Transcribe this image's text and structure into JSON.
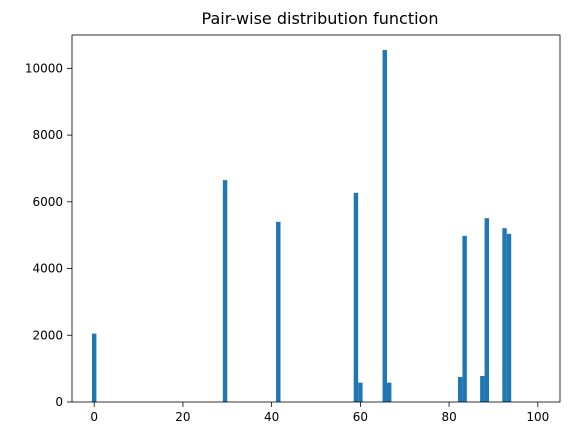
{
  "chart_data": {
    "type": "bar",
    "title": "Pair-wise distribution function",
    "xlabel": "",
    "ylabel": "",
    "xlim": [
      -5,
      105
    ],
    "ylim": [
      0,
      11000
    ],
    "bin_width": 1,
    "bar_color": "#1f77b4",
    "grid": false,
    "x_ticks": [
      0,
      20,
      40,
      60,
      80,
      100
    ],
    "y_ticks": [
      0,
      2000,
      4000,
      6000,
      8000,
      10000
    ],
    "x_tick_labels": [
      "0",
      "20",
      "40",
      "60",
      "80",
      "100"
    ],
    "y_tick_labels": [
      "0",
      "2000",
      "4000",
      "6000",
      "8000",
      "10000"
    ],
    "bars": [
      {
        "x": 0,
        "value": 2050
      },
      {
        "x": 29.5,
        "value": 6650
      },
      {
        "x": 41.5,
        "value": 5400
      },
      {
        "x": 59,
        "value": 6270
      },
      {
        "x": 60,
        "value": 580
      },
      {
        "x": 65.5,
        "value": 10550
      },
      {
        "x": 66.5,
        "value": 580
      },
      {
        "x": 82.5,
        "value": 750
      },
      {
        "x": 83.5,
        "value": 4980
      },
      {
        "x": 87.5,
        "value": 780
      },
      {
        "x": 88.5,
        "value": 5510
      },
      {
        "x": 92.5,
        "value": 5210
      },
      {
        "x": 93.5,
        "value": 5040
      }
    ]
  }
}
